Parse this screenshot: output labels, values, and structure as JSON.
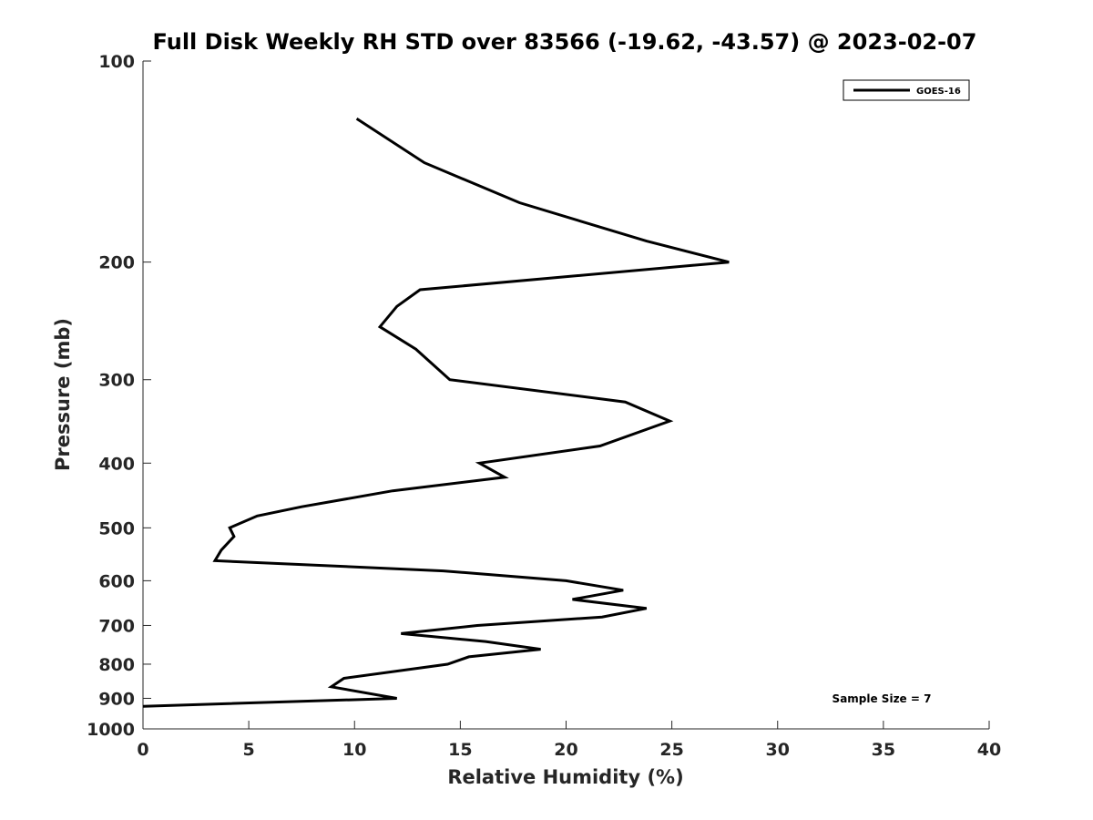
{
  "chart_data": {
    "type": "line",
    "title": "Full Disk Weekly RH STD over 83566 (-19.62, -43.57) @ 2023-02-07",
    "xlabel": "Relative Humidity (%)",
    "ylabel": "Pressure (mb)",
    "xlim": [
      0,
      40
    ],
    "ylim": [
      100,
      1000
    ],
    "yscale": "log",
    "yreversed": true,
    "x_ticks": [
      "0",
      "5",
      "10",
      "15",
      "20",
      "25",
      "30",
      "35",
      "40"
    ],
    "y_ticks": [
      "100",
      "200",
      "300",
      "400",
      "500",
      "600",
      "700",
      "800",
      "900",
      "1000"
    ],
    "legend": {
      "position": "top-right",
      "entries": [
        "GOES-16"
      ]
    },
    "annotation": "Sample Size = 7",
    "series": [
      {
        "name": "GOES-16",
        "color": "#000000",
        "points": [
          [
            10.1,
            122
          ],
          [
            13.3,
            142
          ],
          [
            17.8,
            163
          ],
          [
            23.8,
            186
          ],
          [
            27.7,
            200
          ],
          [
            13.1,
            220
          ],
          [
            12.0,
            233
          ],
          [
            11.2,
            250
          ],
          [
            12.9,
            270
          ],
          [
            14.5,
            300
          ],
          [
            22.8,
            324
          ],
          [
            24.9,
            346
          ],
          [
            21.6,
            377
          ],
          [
            15.9,
            400
          ],
          [
            17.1,
            420
          ],
          [
            11.8,
            440
          ],
          [
            7.5,
            465
          ],
          [
            5.4,
            480
          ],
          [
            4.1,
            500
          ],
          [
            4.3,
            515
          ],
          [
            3.7,
            540
          ],
          [
            3.4,
            560
          ],
          [
            14.2,
            580
          ],
          [
            20.0,
            600
          ],
          [
            22.7,
            620
          ],
          [
            20.3,
            640
          ],
          [
            23.8,
            660
          ],
          [
            21.7,
            680
          ],
          [
            15.8,
            700
          ],
          [
            12.2,
            720
          ],
          [
            16.2,
            740
          ],
          [
            18.8,
            760
          ],
          [
            15.4,
            780
          ],
          [
            14.4,
            800
          ],
          [
            9.5,
            840
          ],
          [
            8.9,
            865
          ],
          [
            12.0,
            900
          ],
          [
            0,
            925
          ]
        ]
      }
    ]
  }
}
